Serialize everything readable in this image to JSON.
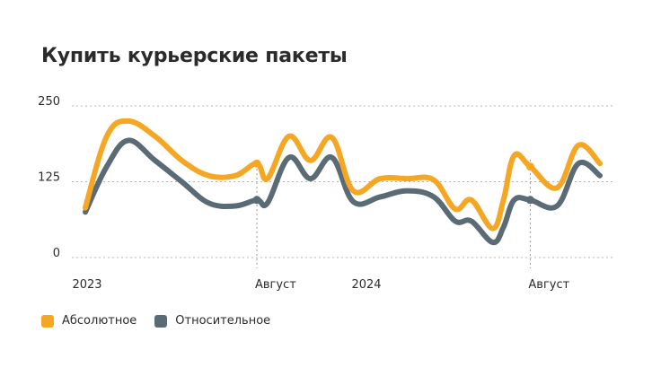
{
  "title": "Купить курьерские пакеты",
  "legend": [
    {
      "label": "Абсолютное",
      "color": "#F5A623"
    },
    {
      "label": "Относительное",
      "color": "#5A6B75"
    }
  ],
  "chart_data": {
    "type": "line",
    "title": "Купить курьерские пакеты",
    "ylim": [
      0,
      250
    ],
    "yticks": [
      0,
      125,
      250
    ],
    "x_tick_labels": [
      {
        "label": "2023",
        "x": 0
      },
      {
        "label": "Август",
        "x": 32
      },
      {
        "label": "2024",
        "x": 50
      },
      {
        "label": "Август",
        "x": 83
      }
    ],
    "x_markers": [
      32,
      83
    ],
    "grid": "horizontal dashed",
    "legend_position": "bottom-left",
    "series": [
      {
        "name": "Абсолютное",
        "color": "#F5A623",
        "points": [
          [
            0,
            82
          ],
          [
            4,
            200
          ],
          [
            8,
            225
          ],
          [
            13,
            200
          ],
          [
            18,
            160
          ],
          [
            23,
            135
          ],
          [
            28,
            135
          ],
          [
            32,
            155
          ],
          [
            34,
            130
          ],
          [
            38,
            200
          ],
          [
            42,
            160
          ],
          [
            46,
            198
          ],
          [
            50,
            110
          ],
          [
            55,
            130
          ],
          [
            60,
            130
          ],
          [
            65,
            128
          ],
          [
            69,
            80
          ],
          [
            72,
            95
          ],
          [
            76,
            48
          ],
          [
            78,
            95
          ],
          [
            80,
            168
          ],
          [
            83,
            150
          ],
          [
            88,
            115
          ],
          [
            92,
            185
          ],
          [
            96,
            155
          ]
        ]
      },
      {
        "name": "Относительное",
        "color": "#5A6B75",
        "points": [
          [
            0,
            75
          ],
          [
            4,
            150
          ],
          [
            8,
            193
          ],
          [
            13,
            160
          ],
          [
            18,
            125
          ],
          [
            23,
            90
          ],
          [
            28,
            85
          ],
          [
            32,
            95
          ],
          [
            34,
            90
          ],
          [
            38,
            165
          ],
          [
            42,
            130
          ],
          [
            46,
            165
          ],
          [
            50,
            92
          ],
          [
            55,
            100
          ],
          [
            60,
            110
          ],
          [
            65,
            100
          ],
          [
            69,
            60
          ],
          [
            72,
            60
          ],
          [
            76,
            25
          ],
          [
            78,
            50
          ],
          [
            80,
            95
          ],
          [
            83,
            95
          ],
          [
            88,
            85
          ],
          [
            92,
            155
          ],
          [
            96,
            135
          ]
        ]
      }
    ]
  }
}
